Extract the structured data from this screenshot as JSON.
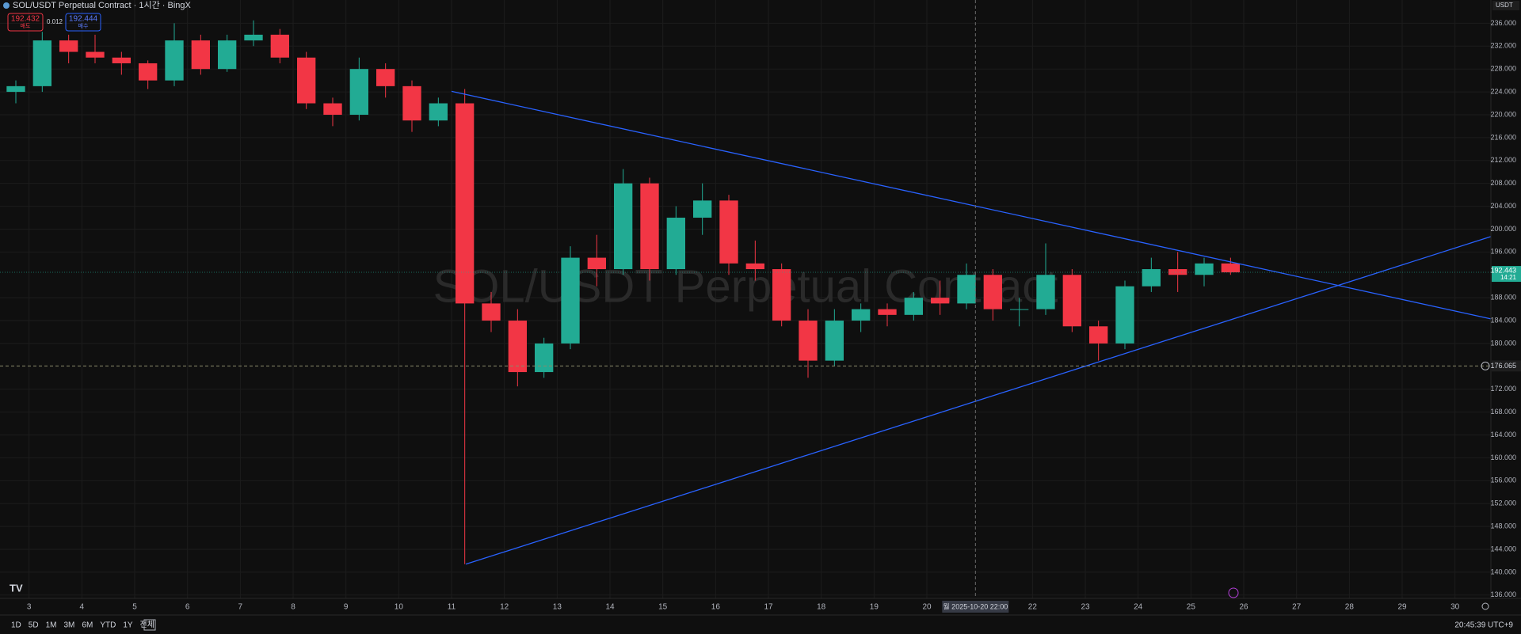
{
  "chart_data": {
    "type": "candlestick",
    "title": "SOL/USDT Perpetual Contract · 1시간 · BingX",
    "watermark": "SOL/USDT Perpetual Contract",
    "currency": "USDT",
    "bid": {
      "price": "192.432",
      "label": "매도"
    },
    "ask": {
      "price": "192.444",
      "label": "매수"
    },
    "spread": "0.012",
    "last_price": {
      "value": 192.443,
      "label": "192.443",
      "countdown": "14:21"
    },
    "price_line": {
      "value": 176.065,
      "label": "176.065"
    },
    "crosshair": {
      "x": 20.92,
      "label": "월 2025-10-20   22:00"
    },
    "clock": "20:45:39 UTC+9",
    "ranges": [
      "1D",
      "5D",
      "1M",
      "3M",
      "6M",
      "YTD",
      "1Y",
      "전체"
    ],
    "up_color": "#22ab94",
    "down_color": "#f23645",
    "line_color": "#2962ff",
    "xlim": [
      2.45,
      30.68
    ],
    "ylim": [
      135.42,
      240.07
    ],
    "grid": true,
    "xticks": [
      3,
      4,
      5,
      6,
      7,
      8,
      9,
      10,
      11,
      12,
      13,
      14,
      15,
      16,
      17,
      18,
      19,
      20,
      22,
      23,
      24,
      25,
      26,
      27,
      28,
      29,
      30
    ],
    "yticks": [
      {
        "value": 136,
        "label": "136.000"
      },
      {
        "value": 140,
        "label": "140.000"
      },
      {
        "value": 144,
        "label": "144.000"
      },
      {
        "value": 148,
        "label": "148.000"
      },
      {
        "value": 152,
        "label": "152.000"
      },
      {
        "value": 156,
        "label": "156.000"
      },
      {
        "value": 160,
        "label": "160.000"
      },
      {
        "value": 164,
        "label": "164.000"
      },
      {
        "value": 168,
        "label": "168.000"
      },
      {
        "value": 172,
        "label": "172.000"
      },
      {
        "value": 180,
        "label": "180.000"
      },
      {
        "value": 184,
        "label": "184.000"
      },
      {
        "value": 188,
        "label": "188.000"
      },
      {
        "value": 196,
        "label": "196.000"
      },
      {
        "value": 200,
        "label": "200.000"
      },
      {
        "value": 204,
        "label": "204.000"
      },
      {
        "value": 208,
        "label": "208.000"
      },
      {
        "value": 212,
        "label": "212.000"
      },
      {
        "value": 216,
        "label": "216.000"
      },
      {
        "value": 220,
        "label": "220.000"
      },
      {
        "value": 224,
        "label": "224.000"
      },
      {
        "value": 228,
        "label": "228.000"
      },
      {
        "value": 232,
        "label": "232.000"
      },
      {
        "value": 236,
        "label": "236.000"
      }
    ],
    "candles": {
      "x": [
        2.75,
        3.25,
        3.75,
        4.25,
        4.75,
        5.25,
        5.75,
        6.25,
        6.75,
        7.25,
        7.75,
        8.25,
        8.75,
        9.25,
        9.75,
        10.25,
        10.75,
        11.25,
        11.75,
        12.25,
        12.75,
        13.25,
        13.75,
        14.25,
        14.75,
        15.25,
        15.75,
        16.25,
        16.75,
        17.25,
        17.75,
        18.25,
        18.75,
        19.25,
        19.75,
        20.25,
        20.75,
        21.25,
        21.75,
        22.25,
        22.75,
        23.25,
        23.75,
        24.25,
        24.75,
        25.25,
        25.75
      ],
      "open": [
        224,
        225,
        233,
        231,
        230,
        229,
        226,
        233,
        228,
        233,
        234,
        230,
        222,
        220,
        228,
        225,
        219,
        222,
        187,
        184,
        175,
        180,
        195,
        193,
        208,
        193,
        202,
        205,
        194,
        193,
        184,
        177,
        184,
        186,
        185,
        188,
        187,
        192,
        186,
        186,
        192,
        183,
        180,
        190,
        193,
        192,
        194
      ],
      "high": [
        226,
        234.5,
        234,
        234,
        231,
        229.5,
        236,
        234,
        234,
        236.5,
        235,
        231,
        223,
        230,
        229,
        226,
        223,
        224.5,
        189,
        186,
        181,
        197,
        199,
        210.5,
        209,
        204,
        208,
        206,
        198,
        194,
        186,
        186,
        187,
        187,
        189,
        191,
        194,
        193,
        188,
        197.5,
        193,
        184,
        191,
        195,
        196,
        195,
        195
      ],
      "low": [
        222,
        224,
        229,
        229,
        227,
        224.5,
        225,
        227,
        227.5,
        232,
        229,
        221,
        218,
        219,
        223,
        217,
        218,
        141.4,
        182,
        172.5,
        174,
        179,
        190,
        192,
        191,
        192,
        199,
        192,
        191,
        183,
        174,
        176,
        182,
        183,
        184,
        185,
        186,
        184,
        183,
        185,
        182,
        177,
        179,
        189,
        189,
        190,
        192
      ],
      "close": [
        225,
        233,
        231,
        230,
        229,
        226,
        233,
        228,
        233,
        234,
        230,
        222,
        220,
        228,
        225,
        219,
        222,
        187,
        184,
        175,
        180,
        195,
        193,
        208,
        193,
        202,
        205,
        194,
        193,
        184,
        177,
        184,
        186,
        185,
        188,
        187,
        192,
        186,
        186,
        192,
        183,
        180,
        190,
        193,
        192,
        194,
        192.443
      ]
    },
    "trendlines": [
      {
        "x": [
          11.0,
          30.68
        ],
        "y": [
          224.1,
          184.3
        ]
      },
      {
        "x": [
          11.27,
          30.68
        ],
        "y": [
          141.4,
          198.7
        ]
      }
    ]
  }
}
